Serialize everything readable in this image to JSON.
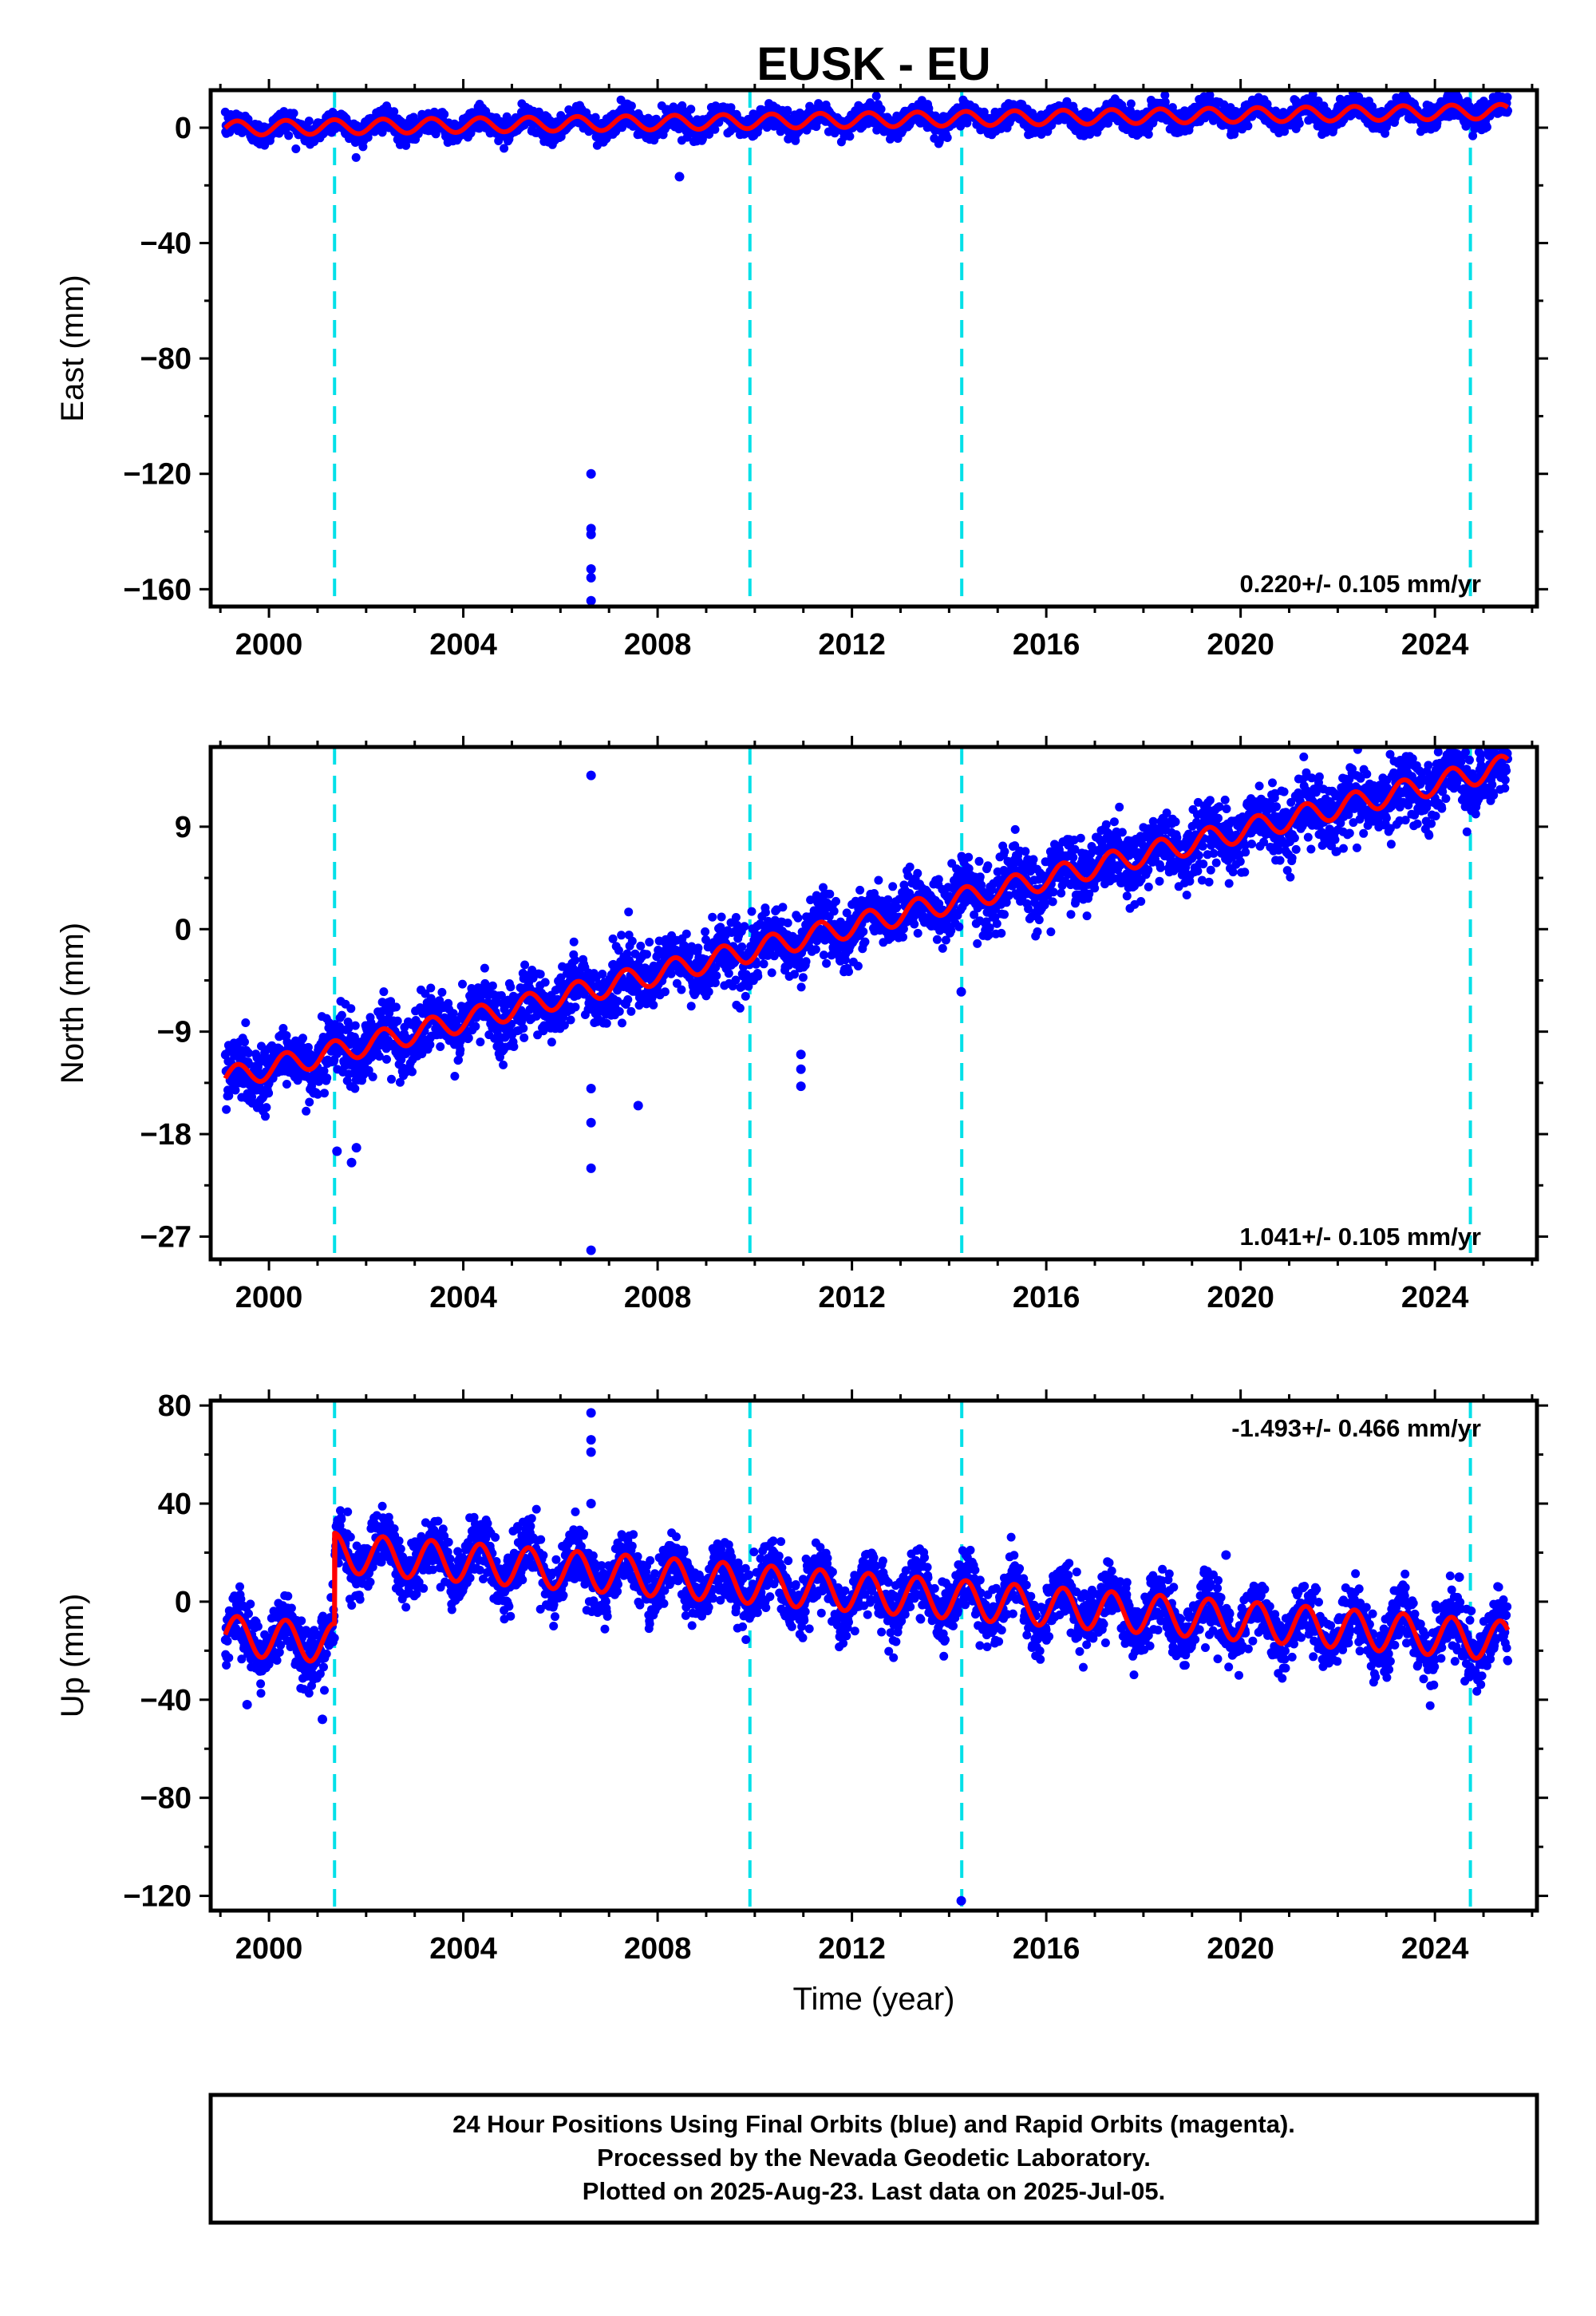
{
  "chart_data": {
    "type": "scatter",
    "title": "EUSK - EU",
    "xlabel": "Time (year)",
    "xlim": [
      1998.8,
      2026.1
    ],
    "xticks": [
      2000,
      2004,
      2008,
      2012,
      2016,
      2020,
      2024
    ],
    "colors": {
      "points": "#0000ff",
      "model": "#ff0000",
      "offset_lines": "#00e0e8",
      "frame": "#000000"
    },
    "offset_years": [
      2001.35,
      2009.9,
      2014.26,
      2024.73
    ],
    "panels": [
      {
        "name": "east",
        "ylabel": "East (mm)",
        "ylim": [
          -166,
          13
        ],
        "yticks": [
          0,
          -40,
          -80,
          -120,
          -160
        ],
        "rate_label": "0.220+/- 0.105 mm/yr",
        "rate_position": "bottom-right",
        "model": {
          "start_year": 1999.1,
          "end_year": 2025.5,
          "rate_mm_per_yr": 0.22,
          "value_at_2000": 0.0,
          "annual_amplitude": 2.5,
          "step_year": null,
          "offset_before_step": 0
        },
        "scatter_sigma": 2.0,
        "outliers": [
          {
            "year": 2006.63,
            "value": -120
          },
          {
            "year": 2006.63,
            "value": -139
          },
          {
            "year": 2006.63,
            "value": -141
          },
          {
            "year": 2006.63,
            "value": -153
          },
          {
            "year": 2006.63,
            "value": -156
          },
          {
            "year": 2006.63,
            "value": -164
          },
          {
            "year": 2008.45,
            "value": -17
          }
        ]
      },
      {
        "name": "north",
        "ylabel": "North (mm)",
        "ylim": [
          -29,
          16
        ],
        "yticks": [
          9,
          0,
          -9,
          -18,
          -27
        ],
        "rate_label": "1.041+/- 0.105 mm/yr",
        "rate_position": "bottom-right",
        "model": {
          "start_year": 1999.1,
          "end_year": 2025.5,
          "rate_mm_per_yr": 1.041,
          "value_at_2000": -12.2,
          "annual_amplitude": 1.0,
          "step_year": null,
          "offset_before_step": 0
        },
        "scatter_sigma": 1.4,
        "outliers": [
          {
            "year": 2006.63,
            "value": 13.5
          },
          {
            "year": 2006.63,
            "value": -28.2
          },
          {
            "year": 2006.63,
            "value": -21
          },
          {
            "year": 2006.63,
            "value": -17
          },
          {
            "year": 2006.63,
            "value": -14
          },
          {
            "year": 2001.4,
            "value": -19.5
          },
          {
            "year": 2001.7,
            "value": -20.5
          },
          {
            "year": 2001.8,
            "value": -19.2
          },
          {
            "year": 2010.95,
            "value": -11
          },
          {
            "year": 2010.95,
            "value": -12.3
          },
          {
            "year": 2010.95,
            "value": -13.8
          },
          {
            "year": 2014.25,
            "value": -5.5
          },
          {
            "year": 2007.6,
            "value": -15.5
          }
        ]
      },
      {
        "name": "up",
        "ylabel": "Up (mm)",
        "ylim": [
          -126,
          82
        ],
        "yticks": [
          80,
          40,
          0,
          -40,
          -80,
          -120
        ],
        "rate_label": "-1.493+/- 0.466 mm/yr",
        "rate_position": "top-right",
        "model": {
          "start_year": 1999.1,
          "end_year": 2025.5,
          "rate_mm_per_yr": -1.493,
          "value_at_2000": 22.0,
          "annual_amplitude": 8.0,
          "step_year": 2001.35,
          "offset_before_step": -37
        },
        "scatter_sigma": 6.0,
        "outliers": [
          {
            "year": 2006.63,
            "value": 77
          },
          {
            "year": 2006.63,
            "value": 66
          },
          {
            "year": 2006.63,
            "value": 61
          },
          {
            "year": 2006.63,
            "value": 40
          },
          {
            "year": 2014.25,
            "value": -122
          },
          {
            "year": 1999.55,
            "value": -42
          },
          {
            "year": 2001.1,
            "value": -48
          },
          {
            "year": 2019.7,
            "value": 19
          },
          {
            "year": 2024.5,
            "value": 10
          }
        ]
      }
    ]
  },
  "footer": {
    "line1": "24 Hour Positions Using Final Orbits (blue) and Rapid Orbits (magenta).",
    "line2": "Processed by the Nevada Geodetic Laboratory.",
    "line3": "Plotted on 2025-Aug-23. Last data on 2025-Jul-05."
  }
}
